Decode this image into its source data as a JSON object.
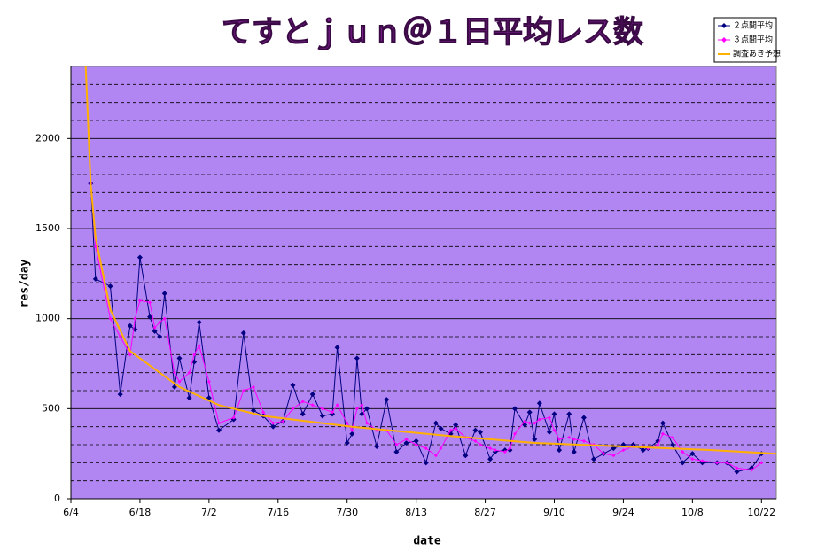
{
  "chart_data": {
    "type": "line",
    "title": "てすとｊｕｎ＠１日平均レス数",
    "x_label": "date",
    "y_label": "res/day",
    "xlim": [
      "6/4",
      "10/25"
    ],
    "xticks": [
      "6/4",
      "6/18",
      "7/2",
      "7/16",
      "7/30",
      "8/13",
      "8/27",
      "9/10",
      "9/24",
      "10/8",
      "10/22"
    ],
    "ylim": [
      0,
      2400
    ],
    "yticks": [
      0,
      500,
      1000,
      1500,
      2000
    ],
    "minor_yticks": [
      100,
      200,
      300,
      400,
      600,
      700,
      800,
      900,
      1100,
      1200,
      1300,
      1400,
      1600,
      1700,
      1800,
      1900,
      2100,
      2200,
      2300
    ],
    "grid": true,
    "legend": "top-right",
    "series": [
      {
        "name": "２点間平均",
        "color": "#000080",
        "marker": "diamond",
        "x": [
          "6/8",
          "6/9",
          "6/12",
          "6/14",
          "6/16",
          "6/17",
          "6/18",
          "6/20",
          "6/21",
          "6/22",
          "6/23",
          "6/25",
          "6/26",
          "6/28",
          "6/29",
          "6/30",
          "7/2",
          "7/4",
          "7/7",
          "7/9",
          "7/11",
          "7/13",
          "7/15",
          "7/17",
          "7/19",
          "7/21",
          "7/23",
          "7/25",
          "7/27",
          "7/28",
          "7/30",
          "7/31",
          "8/1",
          "8/2",
          "8/3",
          "8/5",
          "8/7",
          "8/9",
          "8/11",
          "8/13",
          "8/15",
          "8/17",
          "8/18",
          "8/20",
          "8/21",
          "8/23",
          "8/25",
          "8/26",
          "8/28",
          "8/29",
          "8/31",
          "9/1",
          "9/2",
          "9/4",
          "9/5",
          "9/6",
          "9/7",
          "9/9",
          "9/10",
          "9/11",
          "9/13",
          "9/14",
          "9/16",
          "9/18",
          "9/20",
          "9/22",
          "9/24",
          "9/26",
          "9/28",
          "9/29",
          "10/1",
          "10/2",
          "10/4",
          "10/6",
          "10/8",
          "10/10",
          "10/13",
          "10/15",
          "10/17",
          "10/20",
          "10/22"
        ],
        "values": [
          1750,
          1220,
          1180,
          580,
          960,
          940,
          1340,
          1010,
          930,
          900,
          1140,
          620,
          780,
          560,
          760,
          980,
          560,
          380,
          440,
          920,
          490,
          460,
          400,
          430,
          630,
          470,
          580,
          460,
          470,
          840,
          310,
          360,
          780,
          470,
          500,
          290,
          550,
          260,
          310,
          320,
          200,
          420,
          390,
          360,
          410,
          240,
          380,
          370,
          220,
          260,
          270,
          270,
          500,
          410,
          480,
          330,
          530,
          370,
          470,
          270,
          470,
          260,
          450,
          220,
          250,
          280,
          300,
          300,
          270,
          280,
          320,
          420,
          300,
          200,
          250,
          200,
          200,
          200,
          150,
          170,
          250
        ]
      },
      {
        "name": "３点間平均",
        "color": "#ff00ff",
        "marker": "dot",
        "x": [
          "6/8",
          "6/9",
          "6/12",
          "6/14",
          "6/16",
          "6/17",
          "6/18",
          "6/20",
          "6/21",
          "6/22",
          "6/23",
          "6/25",
          "6/26",
          "6/28",
          "6/29",
          "6/30",
          "7/2",
          "7/4",
          "7/7",
          "7/9",
          "7/11",
          "7/13",
          "7/15",
          "7/17",
          "7/19",
          "7/21",
          "7/23",
          "7/25",
          "7/27",
          "7/28",
          "7/30",
          "7/31",
          "8/1",
          "8/2",
          "8/3",
          "8/5",
          "8/7",
          "8/9",
          "8/11",
          "8/13",
          "8/15",
          "8/17",
          "8/18",
          "8/20",
          "8/21",
          "8/23",
          "8/25",
          "8/26",
          "8/28",
          "8/29",
          "8/31",
          "9/1",
          "9/2",
          "9/4",
          "9/5",
          "9/6",
          "9/7",
          "9/9",
          "9/10",
          "9/11",
          "9/13",
          "9/14",
          "9/16",
          "9/18",
          "9/20",
          "9/22",
          "9/24",
          "9/26",
          "9/28",
          "9/29",
          "10/1",
          "10/2",
          "10/4",
          "10/6",
          "10/8",
          "10/10",
          "10/13",
          "10/15",
          "10/17",
          "10/20",
          "10/22"
        ],
        "values": [
          1750,
          1400,
          1000,
          900,
          800,
          1000,
          1100,
          1090,
          950,
          980,
          1000,
          700,
          650,
          700,
          800,
          850,
          650,
          420,
          450,
          600,
          620,
          480,
          420,
          430,
          500,
          540,
          520,
          500,
          480,
          520,
          420,
          380,
          500,
          520,
          420,
          380,
          380,
          300,
          330,
          300,
          280,
          240,
          280,
          380,
          390,
          340,
          320,
          300,
          280,
          270,
          260,
          280,
          360,
          430,
          420,
          420,
          440,
          450,
          380,
          330,
          340,
          330,
          320,
          300,
          250,
          240,
          270,
          290,
          290,
          280,
          300,
          360,
          340,
          260,
          220,
          210,
          200,
          200,
          170,
          160,
          200
        ]
      },
      {
        "name": "調査あき予想",
        "color": "#ffb000",
        "marker": "none",
        "x": [
          "6/7",
          "6/8",
          "6/9",
          "6/12",
          "6/16",
          "6/26",
          "7/4",
          "7/13",
          "7/31",
          "8/19",
          "9/6",
          "9/24",
          "10/12",
          "10/25"
        ],
        "values": [
          2400,
          1750,
          1450,
          1050,
          820,
          620,
          520,
          460,
          400,
          350,
          310,
          290,
          270,
          250
        ]
      }
    ]
  }
}
